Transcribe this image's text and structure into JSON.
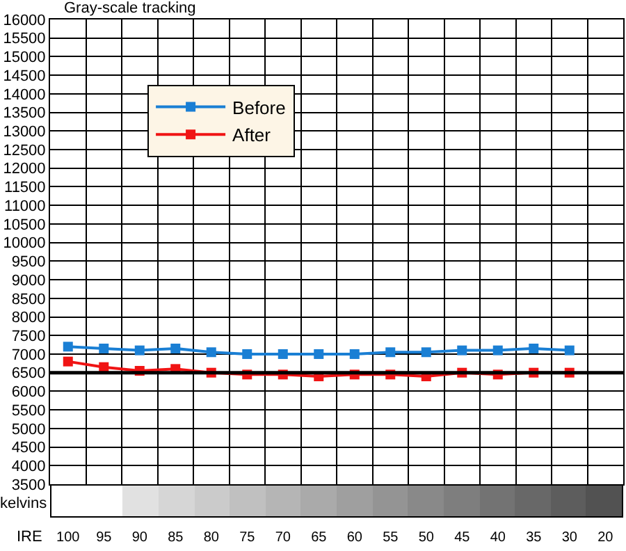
{
  "chart_data": {
    "type": "line",
    "title": "Gray-scale tracking",
    "xlabel": "IRE",
    "ylabel": "kelvins",
    "categories": [
      "100",
      "95",
      "90",
      "85",
      "80",
      "75",
      "70",
      "65",
      "60",
      "55",
      "50",
      "45",
      "40",
      "35",
      "30",
      "20"
    ],
    "series": [
      {
        "name": "Before",
        "color": "#1a7fd4",
        "values": [
          7200,
          7150,
          7100,
          7150,
          7050,
          7000,
          7000,
          7000,
          7000,
          7050,
          7050,
          7100,
          7100,
          7150,
          7100,
          null
        ]
      },
      {
        "name": "After",
        "color": "#f01414",
        "values": [
          6800,
          6650,
          6550,
          6600,
          6500,
          6450,
          6450,
          6400,
          6450,
          6450,
          6400,
          6500,
          6450,
          6500,
          6500,
          null
        ]
      }
    ],
    "ylim": [
      3500,
      16000
    ],
    "yticks": [
      3500,
      4000,
      4500,
      5000,
      5500,
      6000,
      6500,
      7000,
      7500,
      8000,
      8500,
      9000,
      9500,
      10000,
      10500,
      11000,
      11500,
      12000,
      12500,
      13000,
      13500,
      14000,
      14500,
      15000,
      15500,
      16000
    ],
    "ref_lines": [
      {
        "axis": "y",
        "value": 6500,
        "color": "#000000"
      }
    ],
    "grid": true,
    "legend": "top left",
    "marker": "square",
    "line_style": "solid"
  }
}
